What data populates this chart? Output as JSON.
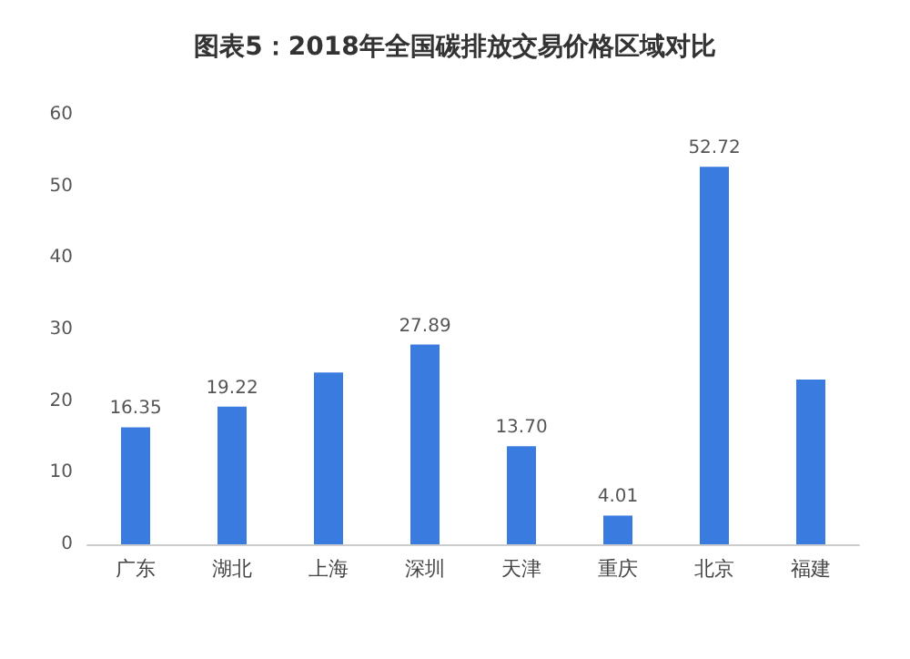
{
  "chart_data": {
    "type": "bar",
    "title": "图表5：2018年全国碳排放交易价格区域对比",
    "categories": [
      "广东",
      "湖北",
      "上海",
      "深圳",
      "天津",
      "重庆",
      "北京",
      "福建"
    ],
    "values": [
      16.35,
      19.22,
      24,
      27.89,
      13.7,
      4.01,
      52.72,
      23
    ],
    "value_labels": [
      "16.35",
      "19.22",
      null,
      "27.89",
      "13.70",
      "4.01",
      "52.72",
      null
    ],
    "color": "#3a7be0",
    "ylim": [
      0,
      60
    ],
    "yticks": [
      0,
      10,
      20,
      30,
      40,
      50,
      60
    ],
    "grid": false
  }
}
